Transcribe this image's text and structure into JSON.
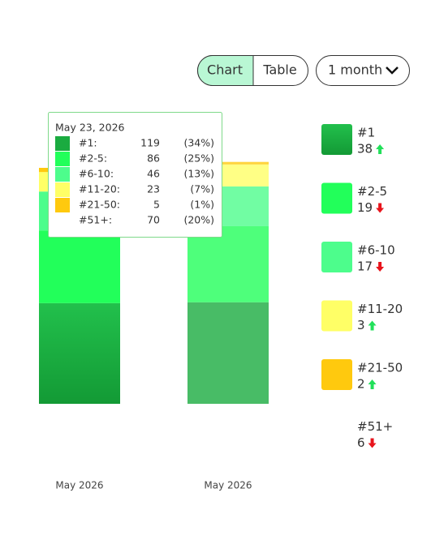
{
  "controls": {
    "chart": "Chart",
    "table": "Table",
    "period": "1 month"
  },
  "chart_data": {
    "type": "bar",
    "stacked": true,
    "categories": [
      "May 2026",
      "May 2026"
    ],
    "series": [
      {
        "name": "#1",
        "color": "#1aab40",
        "values": [
          119,
          120
        ],
        "change": 38,
        "direction": "up"
      },
      {
        "name": "#2-5",
        "color": "#22ff5a",
        "values": [
          86,
          90
        ],
        "change": 19,
        "direction": "down"
      },
      {
        "name": "#6-10",
        "color": "#4dfd8c",
        "values": [
          46,
          47
        ],
        "change": 17,
        "direction": "down"
      },
      {
        "name": "#11-20",
        "color": "#ffff66",
        "values": [
          23,
          26
        ],
        "change": 3,
        "direction": "up"
      },
      {
        "name": "#21-50",
        "color": "#ffc90e",
        "values": [
          5,
          3
        ],
        "change": 2,
        "direction": "up"
      },
      {
        "name": "#51+",
        "color": "#ffffff",
        "values": [
          70,
          64
        ],
        "change": 6,
        "direction": "down"
      }
    ],
    "tooltip": {
      "title": "May 23, 2026",
      "labels": [
        "#1:",
        "#2-5:",
        "#6-10:",
        "#11-20:",
        "#21-50:",
        "#51+:"
      ],
      "percent_labels": [
        "(34%)",
        "(25%)",
        "(13%)",
        "(7%)",
        "(1%)",
        "(20%)"
      ]
    }
  }
}
